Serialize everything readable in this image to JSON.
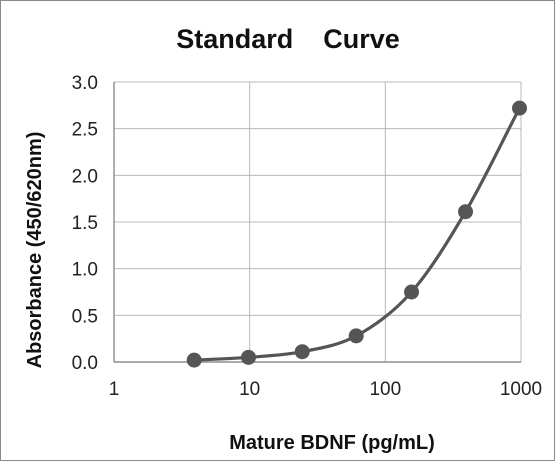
{
  "chart_data": {
    "type": "scatter",
    "title": "Standard    Curve",
    "xlabel": "Mature BDNF (pg/mL)",
    "ylabel": "Absorbance  (450/620nm)",
    "xscale": "log",
    "xlim": [
      1,
      1000
    ],
    "ylim": [
      0,
      3.0
    ],
    "x_ticks": [
      "1",
      "10",
      "100",
      "1000"
    ],
    "y_ticks": [
      "0.0",
      "0.5",
      "1.0",
      "1.5",
      "2.0",
      "2.5",
      "3.0"
    ],
    "grid": true,
    "legend": "none",
    "series": [
      {
        "x": [
          3.9,
          9.8,
          24.4,
          61.0,
          156,
          390,
          975
        ],
        "y": [
          0.02,
          0.05,
          0.11,
          0.28,
          0.75,
          1.61,
          2.72
        ],
        "marker": "circle",
        "fitted_curve": true,
        "color": "#555555"
      }
    ]
  }
}
